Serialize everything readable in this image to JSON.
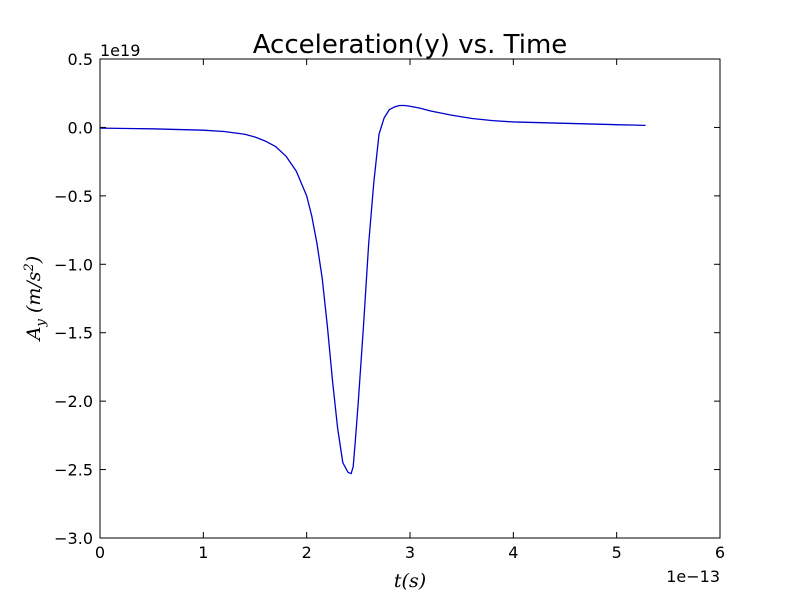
{
  "chart_data": {
    "type": "line",
    "title": "Acceleration(y) vs. Time",
    "xlabel": "t(s)",
    "ylabel": "Ay (m/s²)",
    "ylabel_base": "A",
    "ylabel_sub": "y",
    "ylabel_unit": "(m/s",
    "ylabel_sup": "2",
    "ylabel_close": ")",
    "x_offset_label": "1e−13",
    "y_offset_label": "1e19",
    "xlim": [
      0,
      6
    ],
    "ylim": [
      -3.0,
      0.5
    ],
    "x_scale_factor": "1e-13",
    "y_scale_factor": "1e19",
    "x_ticks": [
      0,
      1,
      2,
      3,
      4,
      5,
      6
    ],
    "x_tick_labels": [
      "0",
      "1",
      "2",
      "3",
      "4",
      "5",
      "6"
    ],
    "y_ticks": [
      0.5,
      0.0,
      -0.5,
      -1.0,
      -1.5,
      -2.0,
      -2.5,
      -3.0
    ],
    "y_tick_labels": [
      "0.5",
      "0.0",
      "−0.5",
      "−1.0",
      "−1.5",
      "−2.0",
      "−2.5",
      "−3.0"
    ],
    "grid": false,
    "series": [
      {
        "color": "#0000cc",
        "x": [
          0.0,
          0.5,
          1.0,
          1.2,
          1.4,
          1.5,
          1.6,
          1.7,
          1.8,
          1.9,
          2.0,
          2.05,
          2.1,
          2.15,
          2.2,
          2.25,
          2.3,
          2.35,
          2.4,
          2.43,
          2.45,
          2.47,
          2.5,
          2.55,
          2.6,
          2.65,
          2.7,
          2.75,
          2.8,
          2.85,
          2.9,
          2.95,
          3.0,
          3.1,
          3.2,
          3.4,
          3.6,
          3.8,
          4.0,
          4.5,
          5.0,
          5.28
        ],
        "y": [
          -0.005,
          -0.01,
          -0.02,
          -0.03,
          -0.05,
          -0.07,
          -0.1,
          -0.14,
          -0.21,
          -0.32,
          -0.5,
          -0.65,
          -0.85,
          -1.1,
          -1.45,
          -1.85,
          -2.2,
          -2.45,
          -2.52,
          -2.53,
          -2.48,
          -2.3,
          -2.0,
          -1.45,
          -0.85,
          -0.4,
          -0.05,
          0.07,
          0.13,
          0.15,
          0.16,
          0.16,
          0.155,
          0.14,
          0.12,
          0.09,
          0.065,
          0.05,
          0.04,
          0.03,
          0.02,
          0.015
        ]
      }
    ]
  }
}
